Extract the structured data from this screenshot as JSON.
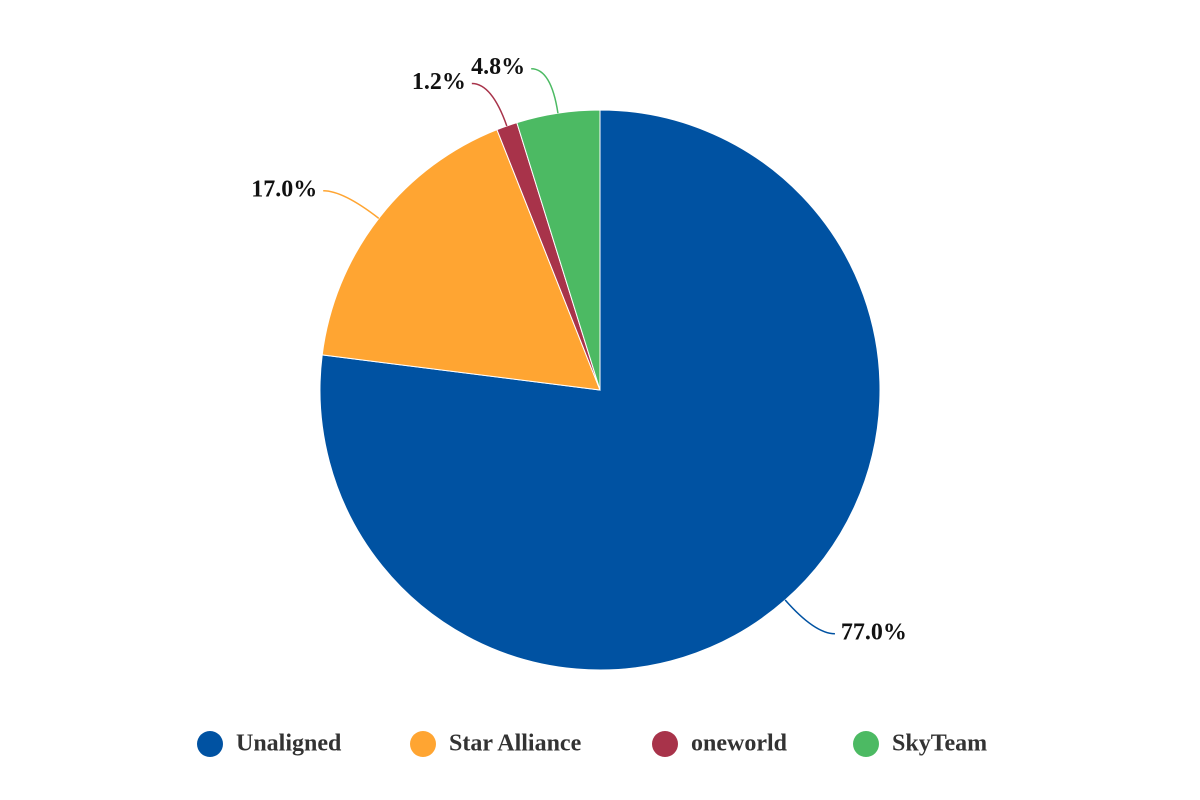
{
  "chart_data": {
    "type": "pie",
    "categories": [
      "Unaligned",
      "Star Alliance",
      "oneworld",
      "SkyTeam"
    ],
    "values": [
      77.0,
      17.0,
      1.2,
      4.8
    ],
    "value_labels": [
      "77.0%",
      "17.0%",
      "1.2%",
      "4.8%"
    ],
    "colors": [
      "#0052a2",
      "#ffa532",
      "#a8334a",
      "#4cba63"
    ],
    "legend": "bottom"
  }
}
